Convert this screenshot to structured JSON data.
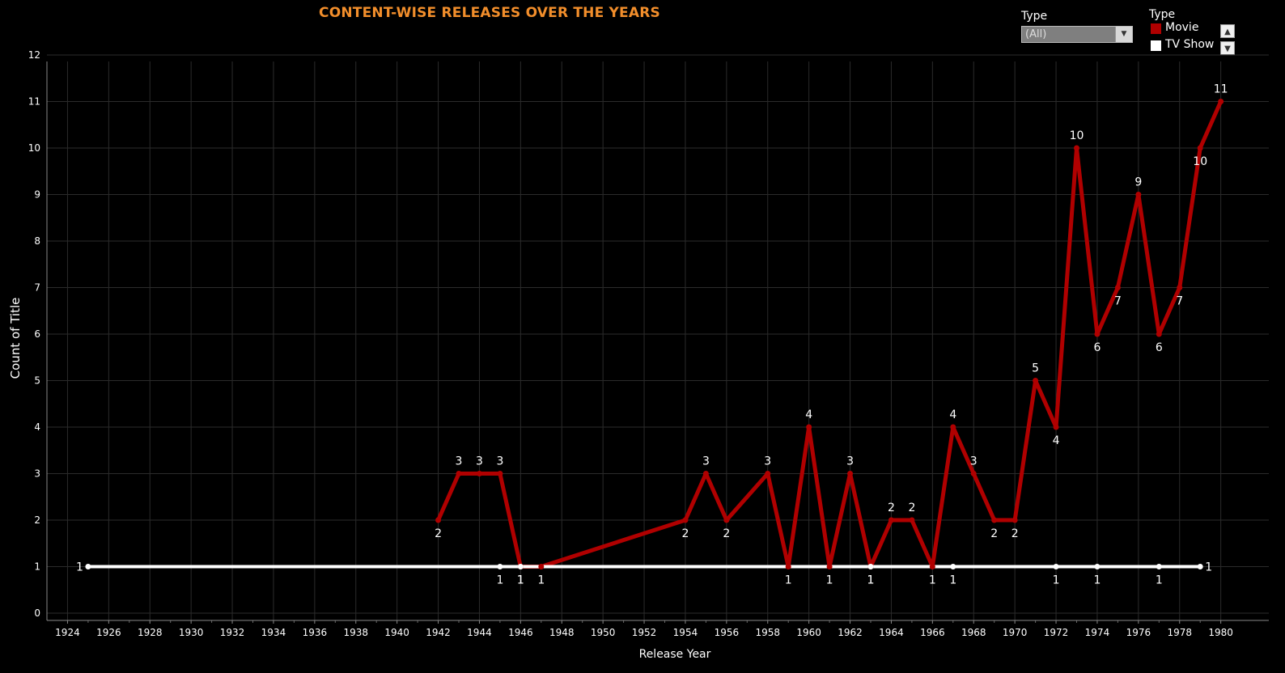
{
  "chart_data": {
    "type": "line",
    "title": "CONTENT-WISE RELEASES OVER THE YEARS",
    "xlabel": "Release Year",
    "ylabel": "Count of Title",
    "xlim": [
      1923,
      1981
    ],
    "ylim": [
      0,
      12
    ],
    "x_ticks": [
      1924,
      1926,
      1928,
      1930,
      1932,
      1934,
      1936,
      1938,
      1940,
      1942,
      1944,
      1946,
      1948,
      1950,
      1952,
      1954,
      1956,
      1958,
      1960,
      1962,
      1964,
      1966,
      1968,
      1970,
      1972,
      1974,
      1976,
      1978,
      1980
    ],
    "y_ticks": [
      0,
      1,
      2,
      3,
      4,
      5,
      6,
      7,
      8,
      9,
      10,
      11,
      12
    ],
    "grid": true,
    "series": [
      {
        "name": "Movie",
        "color": "#b00000",
        "x": [
          1942,
          1943,
          1944,
          1945,
          1946,
          1947,
          1954,
          1955,
          1956,
          1958,
          1959,
          1960,
          1961,
          1962,
          1963,
          1964,
          1965,
          1966,
          1967,
          1968,
          1969,
          1970,
          1971,
          1972,
          1973,
          1974,
          1975,
          1976,
          1977,
          1978,
          1979,
          1980
        ],
        "y": [
          2,
          3,
          3,
          3,
          1,
          1,
          2,
          3,
          2,
          3,
          1,
          4,
          1,
          3,
          1,
          2,
          2,
          1,
          4,
          3,
          2,
          2,
          5,
          4,
          10,
          6,
          7,
          9,
          6,
          7,
          10,
          11
        ]
      },
      {
        "name": "TV Show",
        "color": "#ffffff",
        "x": [
          1925,
          1945,
          1946,
          1963,
          1967,
          1972,
          1974,
          1977,
          1979
        ],
        "y": [
          1,
          1,
          1,
          1,
          1,
          1,
          1,
          1,
          1
        ]
      }
    ]
  },
  "filter": {
    "label": "Type",
    "value": "(All)"
  },
  "legend": {
    "title": "Type",
    "items": [
      "Movie",
      "TV Show"
    ]
  }
}
